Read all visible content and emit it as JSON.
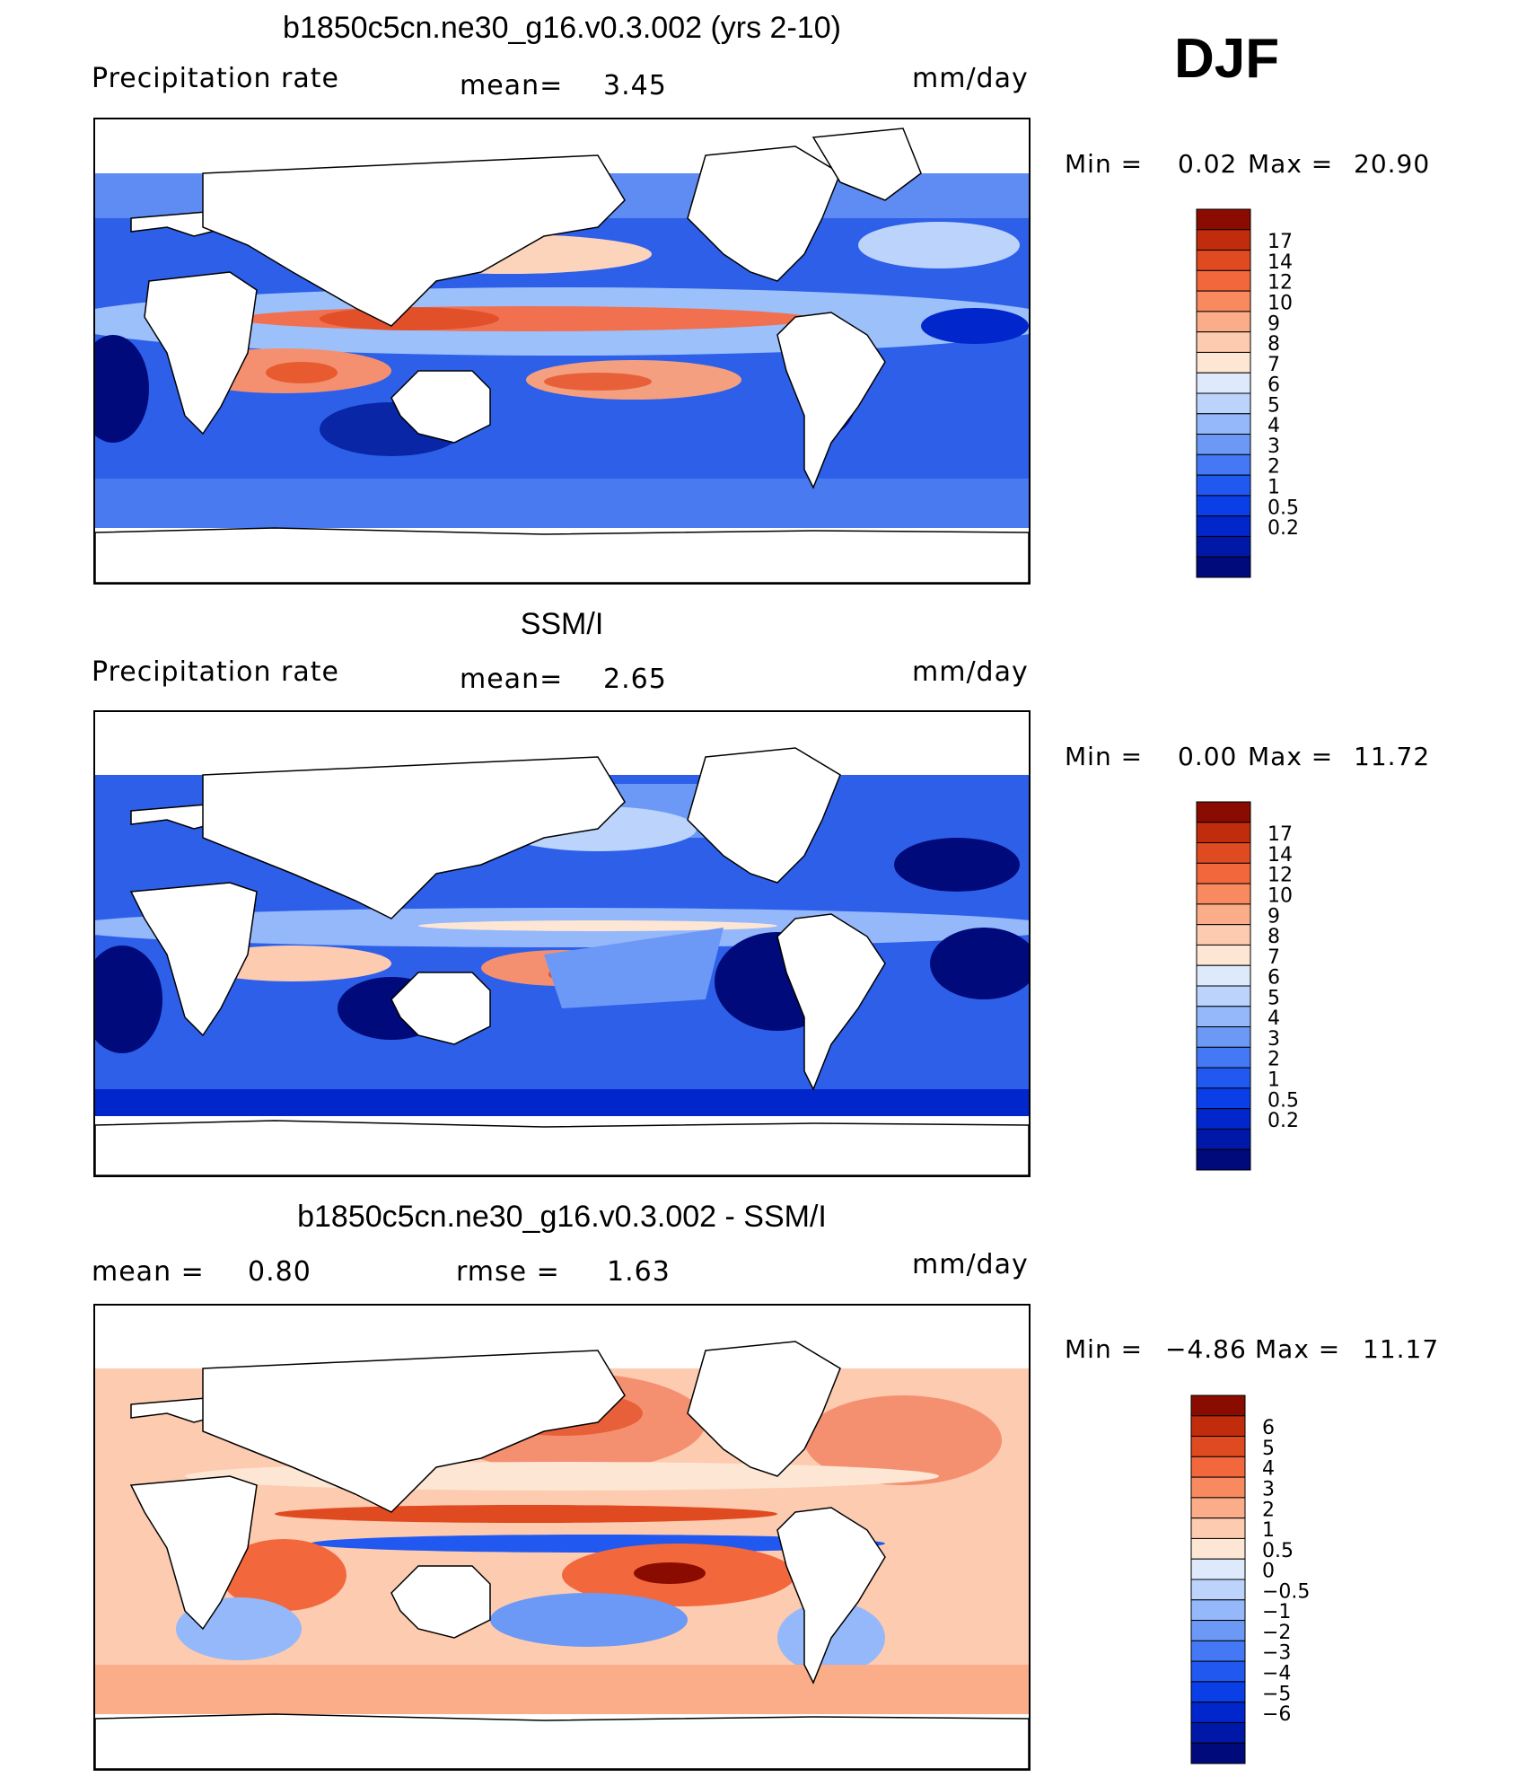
{
  "season": "DJF",
  "panels": [
    {
      "title": "b1850c5cn.ne30_g16.v0.3.002 (yrs 2-10)",
      "left_label": "Precipitation rate",
      "mid_label": "mean=",
      "mid_value": "3.45",
      "units": "mm/day",
      "min_label": "Min =",
      "min_value": "0.02",
      "max_label": "Max =",
      "max_value": "20.90",
      "colorbar": {
        "colors": [
          "#000a7a",
          "#0018a8",
          "#0026cc",
          "#0a3ee6",
          "#2058f0",
          "#4478f4",
          "#6c98f6",
          "#94b8fa",
          "#bcd4fc",
          "#deeafc",
          "#fde6d4",
          "#fccbb0",
          "#fbac88",
          "#f98a60",
          "#f2683c",
          "#e04a20",
          "#c02c0c",
          "#8a0c00"
        ],
        "labels": [
          "0.2",
          "0.5",
          "1",
          "2",
          "3",
          "4",
          "5",
          "6",
          "7",
          "8",
          "9",
          "10",
          "12",
          "14",
          "17"
        ]
      }
    },
    {
      "title": "SSM/I",
      "left_label": "Precipitation rate",
      "mid_label": "mean=",
      "mid_value": "2.65",
      "units": "mm/day",
      "min_label": "Min =",
      "min_value": "0.00",
      "max_label": "Max =",
      "max_value": "11.72",
      "colorbar": {
        "colors": [
          "#000a7a",
          "#0018a8",
          "#0026cc",
          "#0a3ee6",
          "#2058f0",
          "#4478f4",
          "#6c98f6",
          "#94b8fa",
          "#bcd4fc",
          "#deeafc",
          "#fde6d4",
          "#fccbb0",
          "#fbac88",
          "#f98a60",
          "#f2683c",
          "#e04a20",
          "#c02c0c",
          "#8a0c00"
        ],
        "labels": [
          "0.2",
          "0.5",
          "1",
          "2",
          "3",
          "4",
          "5",
          "6",
          "7",
          "8",
          "9",
          "10",
          "12",
          "14",
          "17"
        ]
      }
    },
    {
      "title": "b1850c5cn.ne30_g16.v0.3.002 - SSM/I",
      "left_label": "mean =",
      "left_value": "0.80",
      "mid_label": "rmse =",
      "mid_value": "1.63",
      "units": "mm/day",
      "min_label": "Min =",
      "min_value": "−4.86",
      "max_label": "Max =",
      "max_value": "11.17",
      "colorbar": {
        "colors": [
          "#000a7a",
          "#0018a8",
          "#0026cc",
          "#0a3ee6",
          "#2058f0",
          "#4478f4",
          "#6c98f6",
          "#94b8fa",
          "#bcd4fc",
          "#deeafc",
          "#fde6d4",
          "#fccbb0",
          "#fbac88",
          "#f98a60",
          "#f2683c",
          "#e04a20",
          "#c02c0c",
          "#8a0c00"
        ],
        "labels": [
          "−6",
          "−5",
          "−4",
          "−3",
          "−2",
          "−1",
          "−0.5",
          "0",
          "0.5",
          "1",
          "2",
          "3",
          "4",
          "5",
          "6"
        ]
      }
    }
  ]
}
